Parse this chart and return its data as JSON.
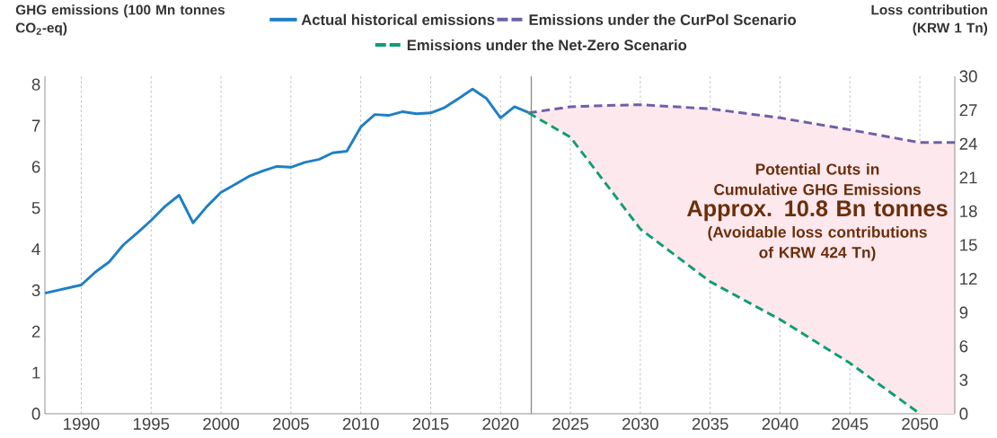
{
  "chart_data": {
    "type": "line",
    "ylabel": "GHG emissions (100 Mn tonnes CO$_{2}$-eq)",
    "y2label": "Loss contribution (KRW 1 Tn)",
    "xlim": [
      1987.4,
      2052.5
    ],
    "xticks": [
      1990,
      1995,
      2000,
      2005,
      2010,
      2015,
      2020,
      2025,
      2030,
      2035,
      2040,
      2045,
      2050
    ],
    "ylim": [
      0,
      8.2
    ],
    "yticks": [
      0,
      1,
      2,
      3,
      4,
      5,
      6,
      7,
      8
    ],
    "y2lim": [
      0,
      30
    ],
    "y2ticks": [
      0,
      3,
      6,
      9,
      12,
      15,
      18,
      21,
      24,
      27,
      30
    ],
    "grid": "x",
    "legend": "top",
    "ref_lines": [
      {
        "axis": "x",
        "value": 2022.2
      }
    ],
    "annotations": [
      "Potential Cuts in Cumulative GHG Emissions",
      "Approx. 10.8 Bn tonnes",
      "(Avoidable loss contributions of KRW 424 Tn)"
    ],
    "series": [
      {
        "name": "Actual historical emissions",
        "color": "#1f7fc4",
        "line_style": "solid",
        "x": [
          1987.4,
          1990,
          1991,
          1992,
          1993,
          1994,
          1995,
          1996,
          1997,
          1998,
          1999,
          2000,
          2001,
          2002,
          2003,
          2004,
          2005,
          2006,
          2007,
          2008,
          2009,
          2010,
          2011,
          2012,
          2013,
          2014,
          2015,
          2016,
          2017,
          2018,
          2019,
          2020,
          2021,
          2022
        ],
        "values": [
          2.93,
          3.13,
          3.44,
          3.69,
          4.1,
          4.39,
          4.7,
          5.04,
          5.31,
          4.64,
          5.04,
          5.38,
          5.57,
          5.77,
          5.9,
          6.01,
          5.99,
          6.11,
          6.18,
          6.34,
          6.38,
          6.97,
          7.27,
          7.25,
          7.34,
          7.29,
          7.31,
          7.44,
          7.66,
          7.89,
          7.66,
          7.19,
          7.46,
          7.32
        ]
      },
      {
        "name": "Emissions under the CurPol Scenario",
        "color": "#6f5fa8",
        "line_style": "dashed",
        "x": [
          2022,
          2025,
          2027.5,
          2030,
          2035,
          2040,
          2045,
          2050,
          2052.5
        ],
        "values": [
          7.31,
          7.46,
          7.49,
          7.51,
          7.41,
          7.19,
          6.9,
          6.59,
          6.59
        ]
      },
      {
        "name": "Emissions under the Net-Zero Scenario",
        "color": "#0f9d74",
        "line_style": "dashed",
        "x": [
          2022,
          2025,
          2030,
          2035,
          2040,
          2045,
          2050,
          2052.5
        ],
        "values": [
          7.31,
          6.72,
          4.49,
          3.21,
          2.29,
          1.23,
          0,
          null
        ],
        "lower": [
          7.31,
          6.72,
          4.49,
          3.21,
          2.29,
          1.23,
          0,
          0
        ],
        "upper": [
          7.31,
          7.46,
          7.51,
          7.41,
          7.19,
          6.9,
          6.59,
          6.59
        ]
      }
    ]
  }
}
